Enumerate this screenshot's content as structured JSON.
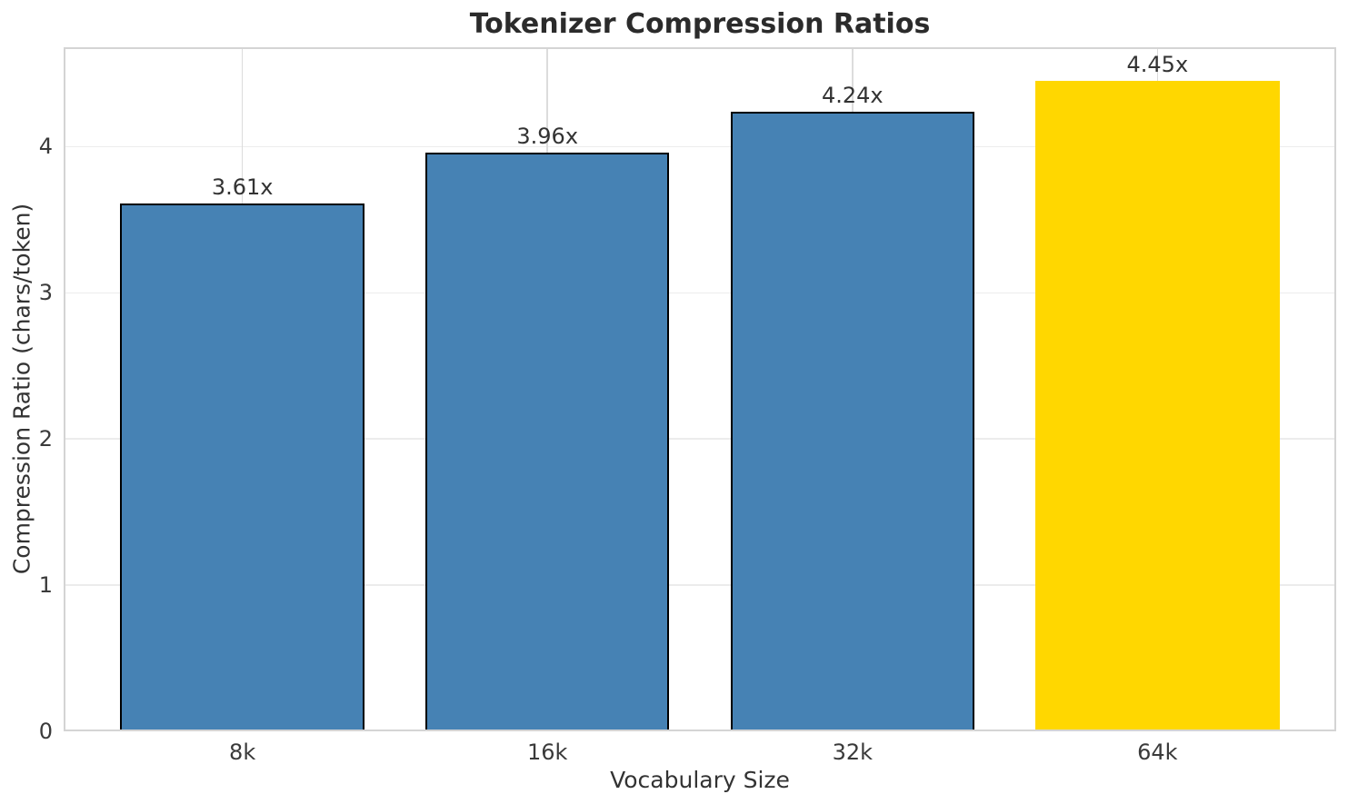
{
  "chart_data": {
    "type": "bar",
    "title": "Tokenizer Compression Ratios",
    "xlabel": "Vocabulary Size",
    "ylabel": "Compression Ratio (chars/token)",
    "categories": [
      "8k",
      "16k",
      "32k",
      "64k"
    ],
    "values": [
      3.61,
      3.96,
      4.24,
      4.45
    ],
    "bar_labels": [
      "3.61x",
      "3.96x",
      "4.24x",
      "4.45x"
    ],
    "bar_colors": [
      "#4682B4",
      "#4682B4",
      "#4682B4",
      "#FFD700"
    ],
    "bar_edge_colors": [
      "#000000",
      "#000000",
      "#000000",
      "#FFD700"
    ],
    "yticks": [
      "0",
      "1",
      "2",
      "3",
      "4"
    ],
    "ytick_values": [
      0,
      1,
      2,
      3,
      4
    ],
    "ylim": [
      0,
      4.68
    ],
    "grid": true,
    "legend": null
  }
}
